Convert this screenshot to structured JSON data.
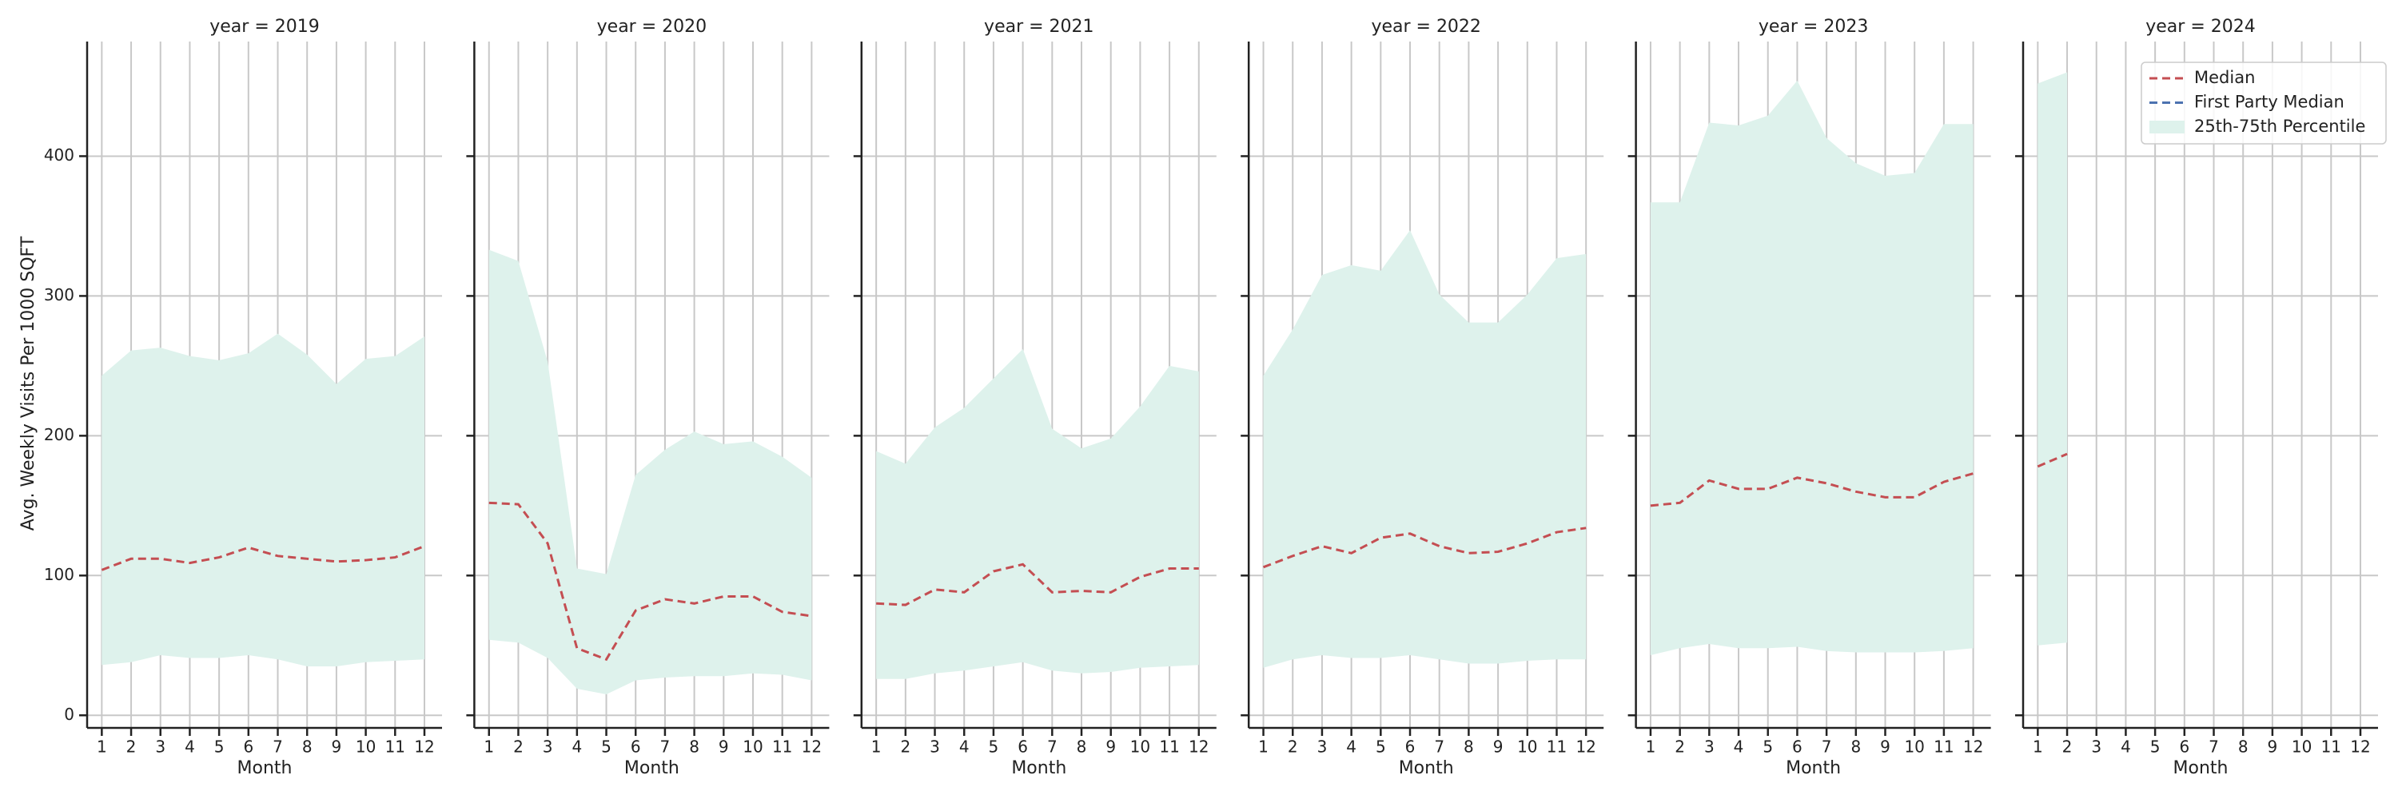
{
  "chart_data": {
    "type": "line",
    "ylabel": "Avg. Weekly Visits Per 1000 SQFT",
    "xlabel": "Month",
    "xlim": [
      0.5,
      12.6
    ],
    "xticks": [
      1,
      2,
      3,
      4,
      5,
      6,
      7,
      8,
      9,
      10,
      11,
      12
    ],
    "ylim": [
      -9,
      482
    ],
    "yticks": [
      0,
      100,
      200,
      300,
      400
    ],
    "grid": true,
    "legend": "upper right",
    "series": [
      {
        "name": "Median",
        "color": "#c44e52",
        "style": "dashed"
      },
      {
        "name": "First Party Median",
        "color": "#4c72b0",
        "style": "dashed"
      },
      {
        "name": "25th-75th Percentile",
        "color": "#def2ec",
        "style": "band"
      }
    ],
    "facets": [
      {
        "title": "year = 2019",
        "x": [
          1,
          2,
          3,
          4,
          5,
          6,
          7,
          8,
          9,
          10,
          11,
          12
        ],
        "median": [
          104,
          112,
          112,
          109,
          113,
          120,
          114,
          112,
          110,
          111,
          113,
          121
        ],
        "first_party_median": [
          null,
          null,
          null,
          null,
          null,
          null,
          null,
          null,
          null,
          null,
          null,
          null
        ],
        "p25": [
          36,
          38,
          43,
          41,
          41,
          43,
          40,
          35,
          35,
          38,
          39,
          40
        ],
        "p75": [
          243,
          261,
          263,
          257,
          254,
          259,
          273,
          258,
          237,
          255,
          257,
          271
        ]
      },
      {
        "title": "year = 2020",
        "x": [
          1,
          2,
          3,
          4,
          5,
          6,
          7,
          8,
          9,
          10,
          11,
          12
        ],
        "median": [
          152,
          151,
          123,
          48,
          40,
          75,
          83,
          80,
          85,
          85,
          74,
          71
        ],
        "first_party_median": [
          null,
          null,
          null,
          null,
          null,
          null,
          null,
          null,
          null,
          null,
          null,
          null
        ],
        "p25": [
          54,
          52,
          41,
          19,
          15,
          25,
          27,
          28,
          28,
          30,
          29,
          25
        ],
        "p75": [
          333,
          325,
          253,
          105,
          101,
          172,
          190,
          203,
          194,
          196,
          185,
          170
        ]
      },
      {
        "title": "year = 2021",
        "x": [
          1,
          2,
          3,
          4,
          5,
          6,
          7,
          8,
          9,
          10,
          11,
          12
        ],
        "median": [
          80,
          79,
          90,
          88,
          103,
          108,
          88,
          89,
          88,
          99,
          105,
          105
        ],
        "first_party_median": [
          null,
          null,
          null,
          null,
          null,
          null,
          null,
          null,
          null,
          null,
          null,
          null
        ],
        "p25": [
          26,
          26,
          30,
          32,
          35,
          38,
          32,
          30,
          31,
          34,
          35,
          36
        ],
        "p75": [
          189,
          180,
          206,
          220,
          241,
          262,
          205,
          191,
          198,
          221,
          250,
          246
        ]
      },
      {
        "title": "year = 2022",
        "x": [
          1,
          2,
          3,
          4,
          5,
          6,
          7,
          8,
          9,
          10,
          11,
          12
        ],
        "median": [
          106,
          114,
          121,
          116,
          127,
          130,
          121,
          116,
          117,
          123,
          131,
          134
        ],
        "first_party_median": [
          null,
          null,
          null,
          null,
          null,
          null,
          null,
          null,
          null,
          null,
          null,
          null
        ],
        "p25": [
          34,
          40,
          43,
          41,
          41,
          43,
          40,
          37,
          37,
          39,
          40,
          40
        ],
        "p75": [
          243,
          276,
          315,
          322,
          318,
          347,
          301,
          281,
          281,
          301,
          327,
          330
        ]
      },
      {
        "title": "year = 2023",
        "x": [
          1,
          2,
          3,
          4,
          5,
          6,
          7,
          8,
          9,
          10,
          11,
          12
        ],
        "median": [
          150,
          152,
          168,
          162,
          162,
          170,
          166,
          160,
          156,
          156,
          167,
          173
        ],
        "first_party_median": [
          null,
          null,
          null,
          null,
          null,
          null,
          null,
          null,
          null,
          null,
          null,
          null
        ],
        "p25": [
          43,
          48,
          51,
          48,
          48,
          49,
          46,
          45,
          45,
          45,
          46,
          48
        ],
        "p75": [
          367,
          367,
          424,
          422,
          429,
          454,
          413,
          395,
          386,
          388,
          423,
          423
        ]
      },
      {
        "title": "year = 2024",
        "x": [
          1,
          2
        ],
        "median": [
          178,
          187
        ],
        "first_party_median": [
          null,
          null
        ],
        "p25": [
          50,
          52
        ],
        "p75": [
          452,
          460
        ]
      }
    ]
  }
}
